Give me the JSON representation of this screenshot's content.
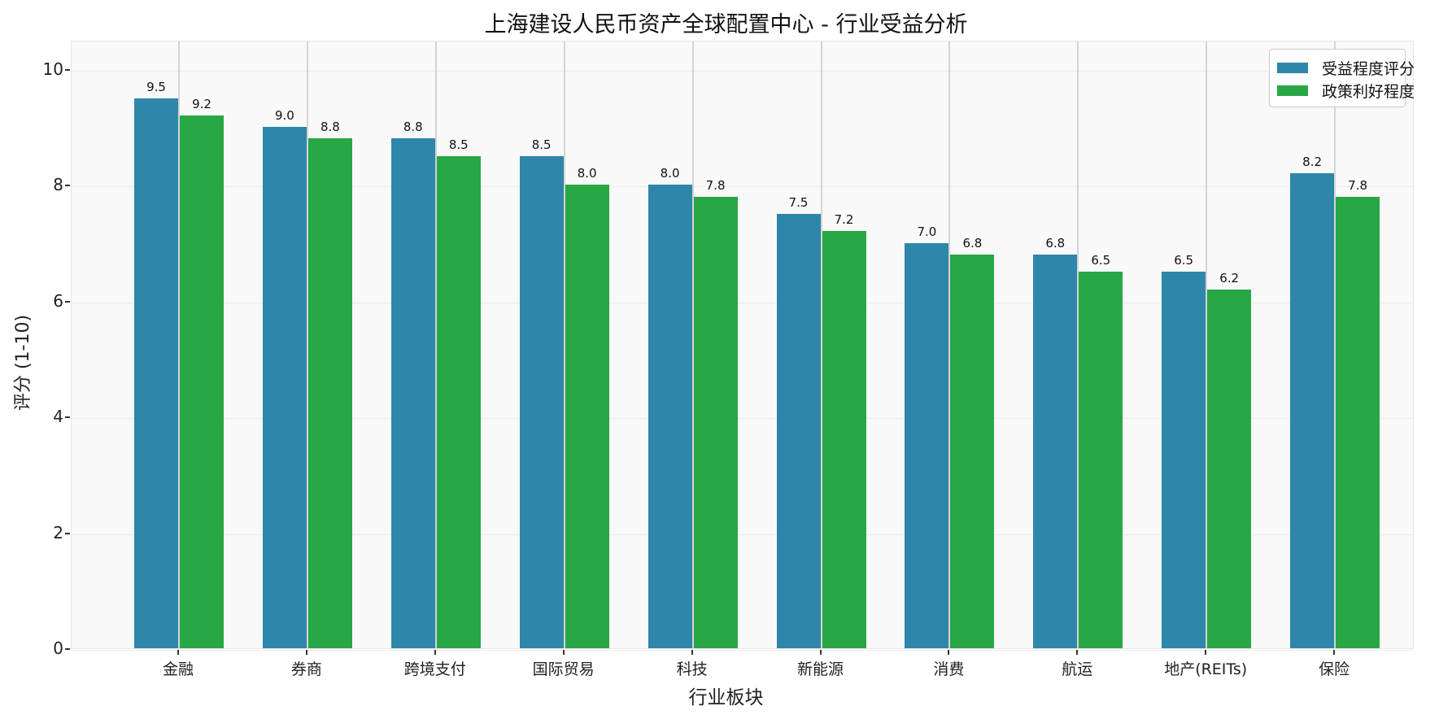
{
  "chart_data": {
    "type": "bar",
    "title": "上海建设人民币资产全球配置中心 - 行业受益分析",
    "xlabel": "行业板块",
    "ylabel": "评分 (1-10)",
    "ylim": [
      0,
      10.5
    ],
    "yticks": [
      "0",
      "2",
      "4",
      "6",
      "8",
      "10"
    ],
    "grid": true,
    "legend_position": "upper right",
    "categories": [
      "金融",
      "券商",
      "跨境支付",
      "国际贸易",
      "科技",
      "新能源",
      "消费",
      "航运",
      "地产(REITs)",
      "保险"
    ],
    "series": [
      {
        "name": "受益程度评分",
        "color": "#2e86ab",
        "values": [
          9.5,
          9.0,
          8.8,
          8.5,
          8.0,
          7.5,
          7.0,
          6.8,
          6.5,
          8.2
        ],
        "labels": [
          "9.5",
          "9.0",
          "8.8",
          "8.5",
          "8.0",
          "7.5",
          "7.0",
          "6.8",
          "6.5",
          "8.2"
        ]
      },
      {
        "name": "政策利好程度",
        "color": "#28a745",
        "values": [
          9.2,
          8.8,
          8.5,
          8.0,
          7.8,
          7.2,
          6.8,
          6.5,
          6.2,
          7.8
        ],
        "labels": [
          "9.2",
          "8.8",
          "8.5",
          "8.0",
          "7.8",
          "7.2",
          "6.8",
          "6.5",
          "6.2",
          "7.8"
        ]
      }
    ]
  }
}
